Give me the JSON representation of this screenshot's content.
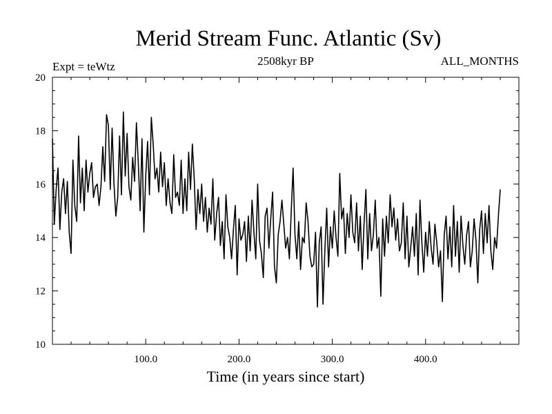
{
  "chart_data": {
    "type": "line",
    "title": "Merid Stream Func. Atlantic (Sv)",
    "subtitle_left": "Expt = teWtz",
    "subtitle_center": "2508kyr BP",
    "subtitle_right": "ALL_MONTHS",
    "xlabel": "Time (in years since start)",
    "ylabel": "",
    "xlim": [
      0,
      500
    ],
    "ylim": [
      10,
      20
    ],
    "x_ticks": [
      {
        "value": 100,
        "label": "100.0"
      },
      {
        "value": 200,
        "label": "200.0"
      },
      {
        "value": 300,
        "label": "300.0"
      },
      {
        "value": 400,
        "label": "400.0"
      }
    ],
    "y_ticks": [
      {
        "value": 10,
        "label": "10"
      },
      {
        "value": 12,
        "label": "12"
      },
      {
        "value": 14,
        "label": "14"
      },
      {
        "value": 16,
        "label": "16"
      },
      {
        "value": 18,
        "label": "18"
      },
      {
        "value": 20,
        "label": "20"
      }
    ],
    "series": [
      {
        "name": "Merid Stream Func. Atlantic",
        "x_start": 0,
        "x_step": 2,
        "values": [
          17.7,
          14.5,
          15.8,
          16.6,
          14.3,
          15.7,
          16.2,
          14.9,
          16.1,
          14.2,
          13.4,
          16.9,
          15.2,
          14.6,
          17.8,
          15.3,
          16.6,
          15.0,
          16.9,
          15.7,
          16.4,
          16.8,
          15.5,
          15.9,
          16.0,
          15.2,
          15.9,
          17.4,
          16.1,
          18.6,
          18.2,
          15.8,
          18.1,
          16.0,
          14.8,
          15.5,
          17.8,
          15.6,
          18.7,
          16.3,
          17.9,
          15.9,
          15.4,
          17.0,
          16.1,
          18.3,
          16.8,
          15.0,
          17.7,
          14.2,
          16.3,
          17.6,
          15.6,
          18.5,
          17.5,
          16.2,
          16.6,
          15.7,
          17.2,
          15.9,
          16.8,
          15.2,
          16.2,
          15.3,
          14.9,
          17.1,
          15.5,
          15.7,
          15.2,
          16.9,
          14.9,
          16.2,
          15.0,
          17.2,
          15.8,
          17.5,
          16.2,
          14.3,
          15.8,
          14.9,
          16.0,
          14.6,
          15.5,
          14.2,
          15.1,
          14.5,
          16.2,
          13.9,
          14.9,
          15.5,
          13.7,
          14.6,
          13.2,
          15.6,
          14.4,
          14.0,
          13.2,
          14.3,
          15.2,
          12.6,
          14.7,
          13.9,
          14.1,
          14.6,
          13.1,
          14.8,
          13.5,
          15.4,
          14.2,
          13.2,
          16.0,
          13.9,
          13.4,
          12.5,
          14.8,
          15.1,
          13.6,
          14.7,
          15.7,
          12.9,
          12.3,
          14.1,
          14.6,
          15.4,
          14.5,
          13.6,
          14.0,
          13.2,
          15.0,
          16.6,
          14.1,
          13.2,
          14.6,
          12.8,
          14.0,
          13.8,
          15.3,
          14.6,
          13.3,
          12.9,
          13.0,
          14.2,
          11.4,
          13.8,
          14.4,
          11.5,
          13.5,
          15.1,
          12.9,
          14.4,
          13.6,
          15.0,
          14.0,
          13.3,
          16.4,
          14.7,
          15.1,
          13.4,
          14.9,
          14.0,
          15.6,
          14.2,
          13.8,
          15.3,
          13.5,
          14.8,
          12.8,
          14.5,
          15.8,
          13.2,
          14.9,
          13.5,
          14.1,
          15.4,
          13.6,
          14.0,
          11.8,
          14.7,
          13.3,
          14.8,
          13.8,
          15.6,
          14.4,
          15.1,
          13.9,
          14.7,
          13.5,
          13.8,
          15.3,
          13.2,
          14.8,
          12.9,
          13.6,
          14.4,
          13.3,
          14.9,
          12.6,
          15.4,
          13.8,
          12.7,
          14.2,
          13.3,
          14.6,
          13.6,
          13.0,
          14.5,
          13.8,
          12.9,
          13.5,
          11.6,
          14.1,
          14.8,
          13.2,
          14.4,
          12.9,
          15.2,
          13.3,
          14.6,
          12.7,
          14.8,
          13.7,
          13.0,
          14.1,
          14.6,
          12.9,
          13.5,
          14.7,
          13.9,
          12.3,
          14.3,
          15.0,
          13.4,
          14.9,
          13.8,
          15.2,
          13.5,
          12.8,
          14.0,
          13.6,
          14.8,
          15.8
        ]
      }
    ]
  }
}
